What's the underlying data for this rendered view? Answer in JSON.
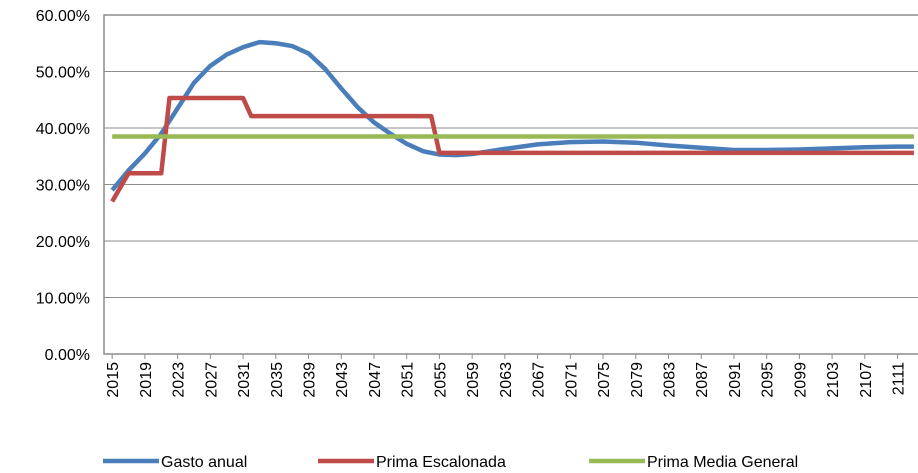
{
  "chart_data": {
    "type": "line",
    "ylim": [
      0,
      60
    ],
    "yticks": [
      {
        "value": 0,
        "label": "0.00%"
      },
      {
        "value": 10,
        "label": "10.00%"
      },
      {
        "value": 20,
        "label": "20.00%"
      },
      {
        "value": 30,
        "label": "30.00%"
      },
      {
        "value": 40,
        "label": "40.00%"
      },
      {
        "value": 50,
        "label": "50.00%"
      },
      {
        "value": 60,
        "label": "60.00%"
      }
    ],
    "xlim": [
      2014,
      2113.5
    ],
    "xticks": [
      2015,
      2019,
      2023,
      2027,
      2031,
      2035,
      2039,
      2043,
      2047,
      2051,
      2055,
      2059,
      2063,
      2067,
      2071,
      2075,
      2079,
      2083,
      2087,
      2091,
      2095,
      2099,
      2103,
      2107,
      2111
    ],
    "grid": true,
    "legend": "bottom",
    "series": [
      {
        "name": "Gasto anual",
        "color": "#4a7ebb",
        "x": [
          2015,
          2017,
          2019,
          2021,
          2023,
          2025,
          2027,
          2029,
          2031,
          2033,
          2035,
          2037,
          2039,
          2041,
          2043,
          2045,
          2047,
          2049,
          2051,
          2053,
          2055,
          2057,
          2059,
          2063,
          2067,
          2071,
          2075,
          2079,
          2083,
          2087,
          2091,
          2095,
          2099,
          2103,
          2107,
          2111,
          2113
        ],
        "values": [
          29,
          32.5,
          35.5,
          39,
          43.5,
          48,
          51,
          53,
          54.3,
          55.2,
          55,
          54.5,
          53.2,
          50.5,
          47,
          43.7,
          41,
          39,
          37.2,
          35.9,
          35.3,
          35.2,
          35.4,
          36.3,
          37.1,
          37.5,
          37.6,
          37.4,
          36.9,
          36.5,
          36.1,
          36.1,
          36.2,
          36.4,
          36.6,
          36.7,
          36.7
        ]
      },
      {
        "name": "Prima Escalonada",
        "color": "#be4b48",
        "x": [
          2015,
          2017,
          2021,
          2022,
          2031,
          2032,
          2054,
          2055,
          2113
        ],
        "values": [
          27,
          32,
          32,
          45.3,
          45.3,
          42.1,
          42.1,
          35.6,
          35.6
        ]
      },
      {
        "name": "Prima Media General",
        "color": "#98b954",
        "x": [
          2015,
          2113
        ],
        "values": [
          38.5,
          38.5
        ]
      }
    ]
  }
}
